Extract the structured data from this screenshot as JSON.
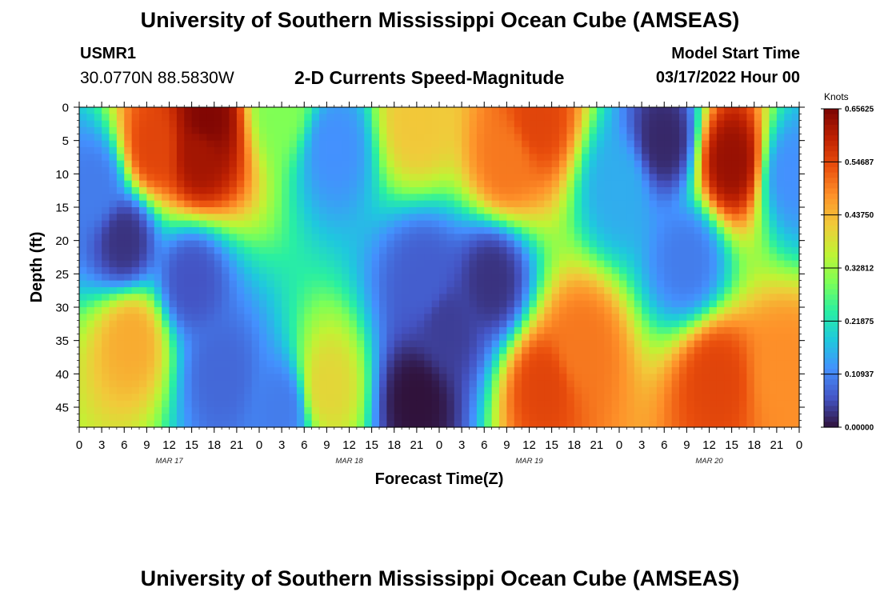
{
  "header": {
    "title": "University of Southern Mississippi Ocean Cube (AMSEAS)",
    "station": "USMR1",
    "coords": "30.0770N  88.5830W",
    "subtitle": "2-D Currents Speed-Magnitude",
    "model_start_label": "Model Start Time",
    "model_start_value": "03/17/2022 Hour 00"
  },
  "footer": {
    "title": "University of Southern Mississippi Ocean Cube (AMSEAS)"
  },
  "chart_data": {
    "type": "heatmap",
    "xlabel": "Forecast Time(Z)",
    "ylabel": "Depth (ft)",
    "x_ticks": [
      "0",
      "3",
      "6",
      "9",
      "12",
      "15",
      "18",
      "21",
      "0",
      "3",
      "6",
      "9",
      "12",
      "15",
      "18",
      "21",
      "0",
      "3",
      "6",
      "9",
      "12",
      "15",
      "18",
      "21",
      "0",
      "3",
      "6",
      "9",
      "12",
      "15",
      "18",
      "21",
      "0"
    ],
    "x_range_hours": [
      0,
      96
    ],
    "day_labels": [
      "MAR 17",
      "MAR 18",
      "MAR 19",
      "MAR 20"
    ],
    "y_ticks": [
      "0",
      "5",
      "10",
      "15",
      "20",
      "25",
      "30",
      "35",
      "40",
      "45"
    ],
    "y_range_ft": [
      0,
      48
    ],
    "colorbar": {
      "label": "Knots",
      "ticks": [
        "0.00000",
        "0.10937",
        "0.21875",
        "0.32812",
        "0.43750",
        "0.54687",
        "0.65625"
      ],
      "range": [
        0,
        0.65625
      ]
    },
    "features": [
      {
        "time_h": 16,
        "depth_ft": 7,
        "speed": 0.62
      },
      {
        "time_h": 10,
        "depth_ft": 6,
        "speed": 0.55
      },
      {
        "time_h": 17,
        "depth_ft": 2,
        "speed": 0.65
      },
      {
        "time_h": 6,
        "depth_ft": 20,
        "speed": 0.03
      },
      {
        "time_h": 2,
        "depth_ft": 12,
        "speed": 0.1
      },
      {
        "time_h": 7,
        "depth_ft": 35,
        "speed": 0.45
      },
      {
        "time_h": 15,
        "depth_ft": 26,
        "speed": 0.06
      },
      {
        "time_h": 19,
        "depth_ft": 40,
        "speed": 0.08
      },
      {
        "time_h": 27,
        "depth_ft": 45,
        "speed": 0.1
      },
      {
        "time_h": 27,
        "depth_ft": 0,
        "speed": 0.3
      },
      {
        "time_h": 34,
        "depth_ft": 6,
        "speed": 0.12
      },
      {
        "time_h": 33,
        "depth_ft": 42,
        "speed": 0.4
      },
      {
        "time_h": 46,
        "depth_ft": 26,
        "speed": 0.07
      },
      {
        "time_h": 45,
        "depth_ft": 2,
        "speed": 0.42
      },
      {
        "time_h": 45,
        "depth_ft": 44,
        "speed": 0.0
      },
      {
        "time_h": 49,
        "depth_ft": 33,
        "speed": 0.04
      },
      {
        "time_h": 55,
        "depth_ft": 26,
        "speed": 0.03
      },
      {
        "time_h": 57,
        "depth_ft": 8,
        "speed": 0.5
      },
      {
        "time_h": 61,
        "depth_ft": 2,
        "speed": 0.55
      },
      {
        "time_h": 62,
        "depth_ft": 42,
        "speed": 0.55
      },
      {
        "time_h": 67,
        "depth_ft": 36,
        "speed": 0.5
      },
      {
        "time_h": 72,
        "depth_ft": 12,
        "speed": 0.15
      },
      {
        "time_h": 78,
        "depth_ft": 5,
        "speed": 0.02
      },
      {
        "time_h": 81,
        "depth_ft": 23,
        "speed": 0.1
      },
      {
        "time_h": 87,
        "depth_ft": 8,
        "speed": 0.63
      },
      {
        "time_h": 85,
        "depth_ft": 41,
        "speed": 0.55
      },
      {
        "time_h": 94,
        "depth_ft": 40,
        "speed": 0.48
      },
      {
        "time_h": 95,
        "depth_ft": 10,
        "speed": 0.12
      }
    ]
  },
  "colors": {
    "scale": [
      "#30123b",
      "#4454c4",
      "#4490fe",
      "#1fc8de",
      "#29efa2",
      "#7dff56",
      "#c1f334",
      "#f1ca3a",
      "#fe922a",
      "#ea4f0d",
      "#be2102",
      "#7a0403"
    ]
  }
}
